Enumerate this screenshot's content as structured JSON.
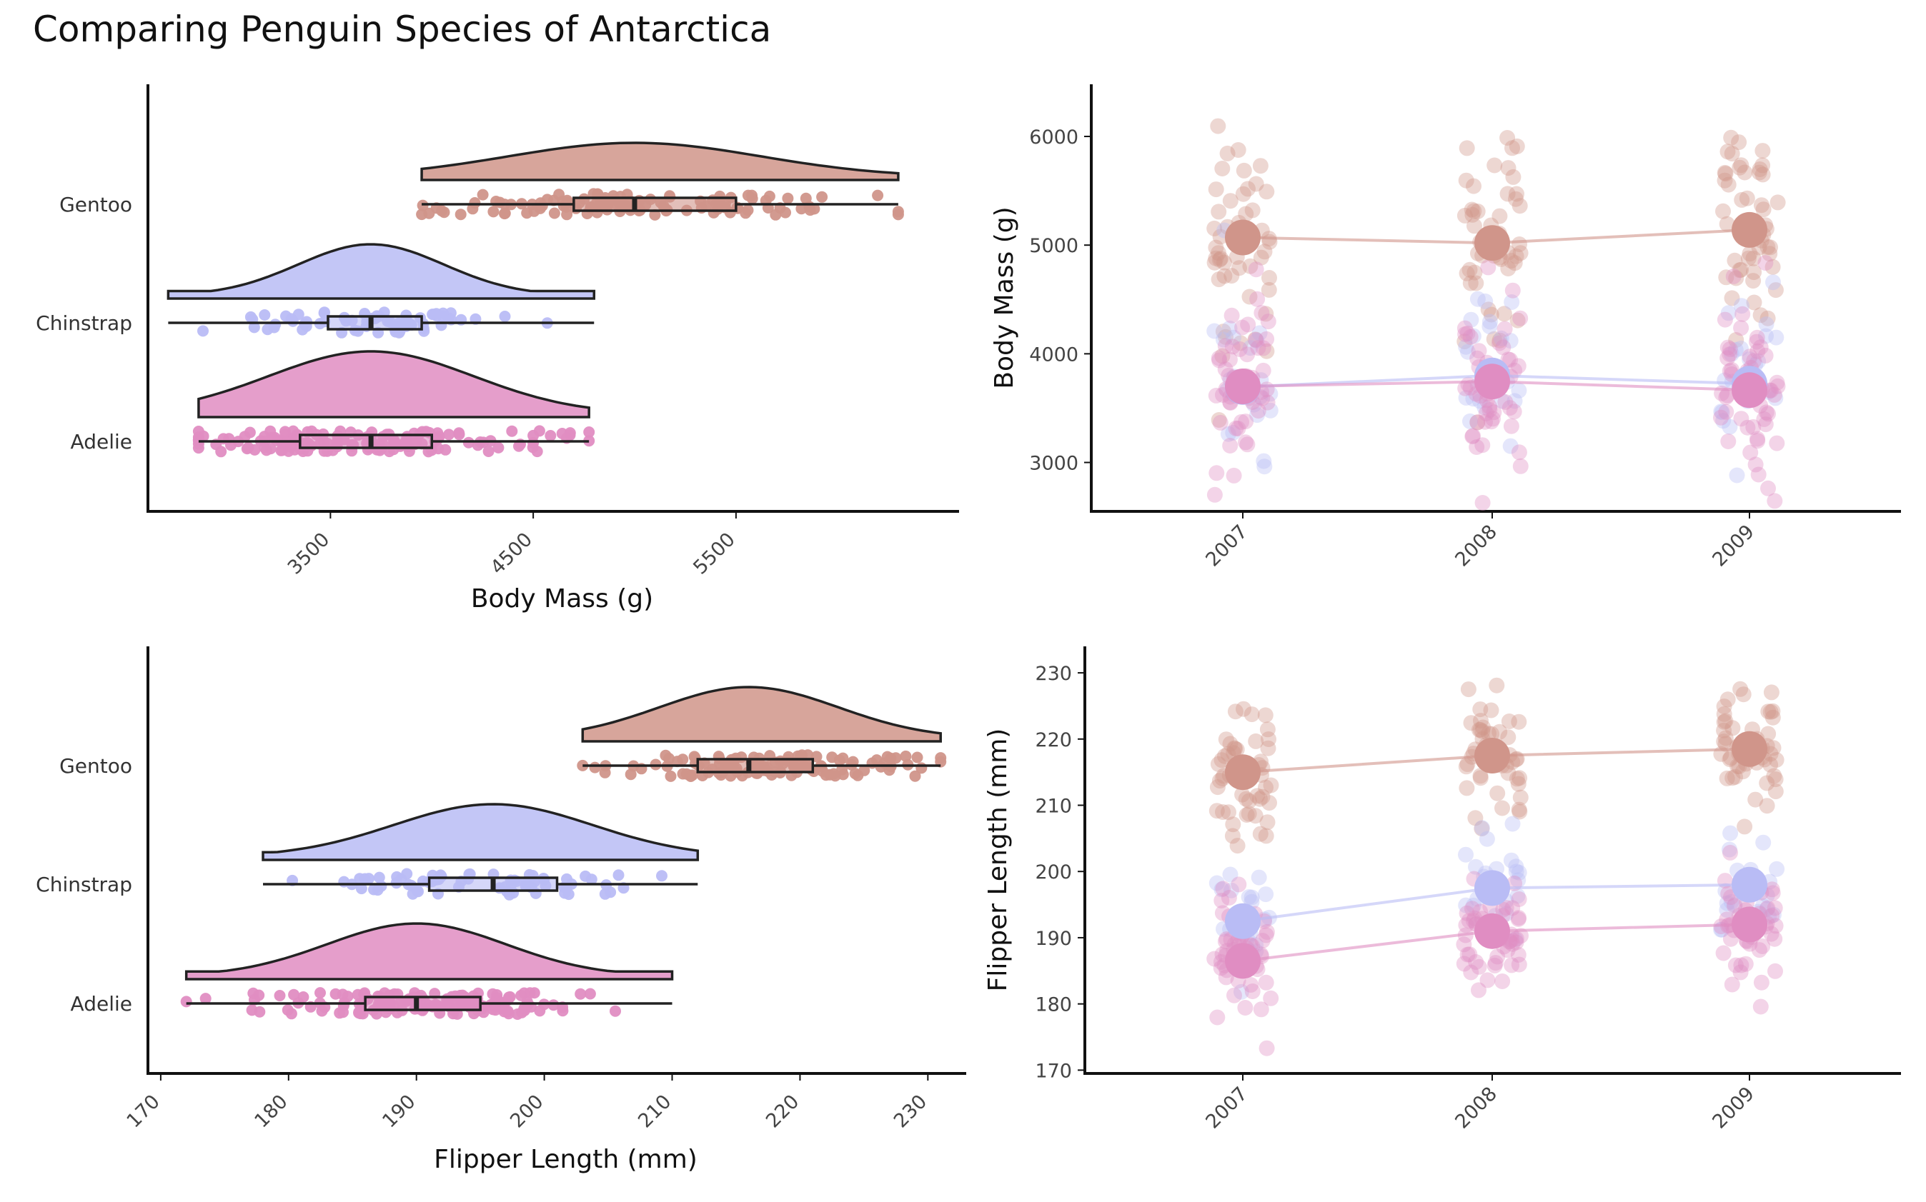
{
  "title": "Comparing Penguin Species of Antarctica",
  "species_colors": {
    "Adelie": "#e08dc2",
    "Chinstrap": "#b9bcf5",
    "Gentoo": "#d0958a"
  },
  "chart_data": [
    {
      "type": "raincloud",
      "xlabel": "Body Mass (g)",
      "xticks": [
        3500,
        4500,
        5500
      ],
      "xlim": [
        2600,
        6600
      ],
      "categories": [
        "Adelie",
        "Chinstrap",
        "Gentoo"
      ],
      "series": [
        {
          "name": "Gentoo",
          "min": 3950,
          "q1": 4700,
          "median": 5000,
          "q3": 5500,
          "max": 6300
        },
        {
          "name": "Chinstrap",
          "min": 2700,
          "q1": 3488,
          "median": 3700,
          "q3": 3950,
          "max": 4800
        },
        {
          "name": "Adelie",
          "min": 2850,
          "q1": 3350,
          "median": 3700,
          "q3": 4000,
          "max": 4775
        }
      ]
    },
    {
      "type": "line",
      "xlabel": "",
      "ylabel": "Body Mass (g)",
      "categories": [
        "2007",
        "2008",
        "2009"
      ],
      "yticks": [
        3000,
        4000,
        5000,
        6000
      ],
      "ylim": [
        2550,
        6480
      ],
      "series": [
        {
          "name": "Gentoo",
          "values": [
            5070,
            5020,
            5140
          ]
        },
        {
          "name": "Chinstrap",
          "values": [
            3695,
            3800,
            3725
          ]
        },
        {
          "name": "Adelie",
          "values": [
            3700,
            3745,
            3665
          ]
        }
      ]
    },
    {
      "type": "raincloud",
      "xlabel": "Flipper Length (mm)",
      "xticks": [
        170,
        180,
        190,
        200,
        210,
        220,
        230
      ],
      "xlim": [
        169,
        233
      ],
      "categories": [
        "Adelie",
        "Chinstrap",
        "Gentoo"
      ],
      "series": [
        {
          "name": "Gentoo",
          "min": 203,
          "q1": 212,
          "median": 216,
          "q3": 221,
          "max": 231
        },
        {
          "name": "Chinstrap",
          "min": 178,
          "q1": 191,
          "median": 196,
          "q3": 201,
          "max": 212
        },
        {
          "name": "Adelie",
          "min": 172,
          "q1": 186,
          "median": 190,
          "q3": 195,
          "max": 210
        }
      ]
    },
    {
      "type": "line",
      "xlabel": "",
      "ylabel": "Flipper Length (mm)",
      "categories": [
        "2007",
        "2008",
        "2009"
      ],
      "yticks": [
        170,
        180,
        190,
        200,
        210,
        220,
        230
      ],
      "ylim": [
        169.5,
        234
      ],
      "series": [
        {
          "name": "Gentoo",
          "values": [
            215,
            217.5,
            218.5
          ]
        },
        {
          "name": "Chinstrap",
          "values": [
            192.5,
            197.5,
            198
          ]
        },
        {
          "name": "Adelie",
          "values": [
            186.5,
            191,
            192
          ]
        }
      ]
    }
  ]
}
